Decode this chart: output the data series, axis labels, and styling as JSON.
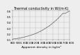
{
  "title": "Thermal conductivity in W/(m·K)",
  "xlabel": "Apparent density in kg/m³",
  "xlim": [
    800,
    1800
  ],
  "ylim": [
    0.1,
    0.6
  ],
  "xticks": [
    800,
    900,
    1000,
    1100,
    1200,
    1300,
    1400,
    1500,
    1600,
    1700,
    1800
  ],
  "xtick_labels": [
    "800",
    "900",
    "1 000",
    "1 100",
    "1 200",
    "1 300",
    "1 400",
    "1 500",
    "1 600",
    "1 700",
    "1 800"
  ],
  "yticks": [
    0.1,
    0.2,
    0.3,
    0.4,
    0.5,
    0.6
  ],
  "ytick_labels": [
    "0.1",
    "0.2",
    "0.3",
    "0.4",
    "0.5",
    "0.6"
  ],
  "curve_x": [
    800,
    840,
    880,
    920,
    960,
    1000,
    1040,
    1080,
    1120,
    1160,
    1200,
    1240,
    1280,
    1320,
    1360,
    1400,
    1440,
    1480,
    1520,
    1560,
    1600,
    1640,
    1680,
    1720,
    1760,
    1800
  ],
  "curve_y": [
    0.11,
    0.115,
    0.121,
    0.128,
    0.136,
    0.144,
    0.154,
    0.165,
    0.177,
    0.191,
    0.206,
    0.223,
    0.242,
    0.263,
    0.286,
    0.311,
    0.338,
    0.368,
    0.4,
    0.435,
    0.472,
    0.512,
    0.553,
    0.553,
    0.575,
    0.595
  ],
  "line_color": "#666666",
  "marker_color": "#555555",
  "bg_color": "#eeeeee",
  "grid_color": "#bbbbbb",
  "title_fontsize": 3.5,
  "label_fontsize": 3.2,
  "tick_fontsize": 2.8
}
